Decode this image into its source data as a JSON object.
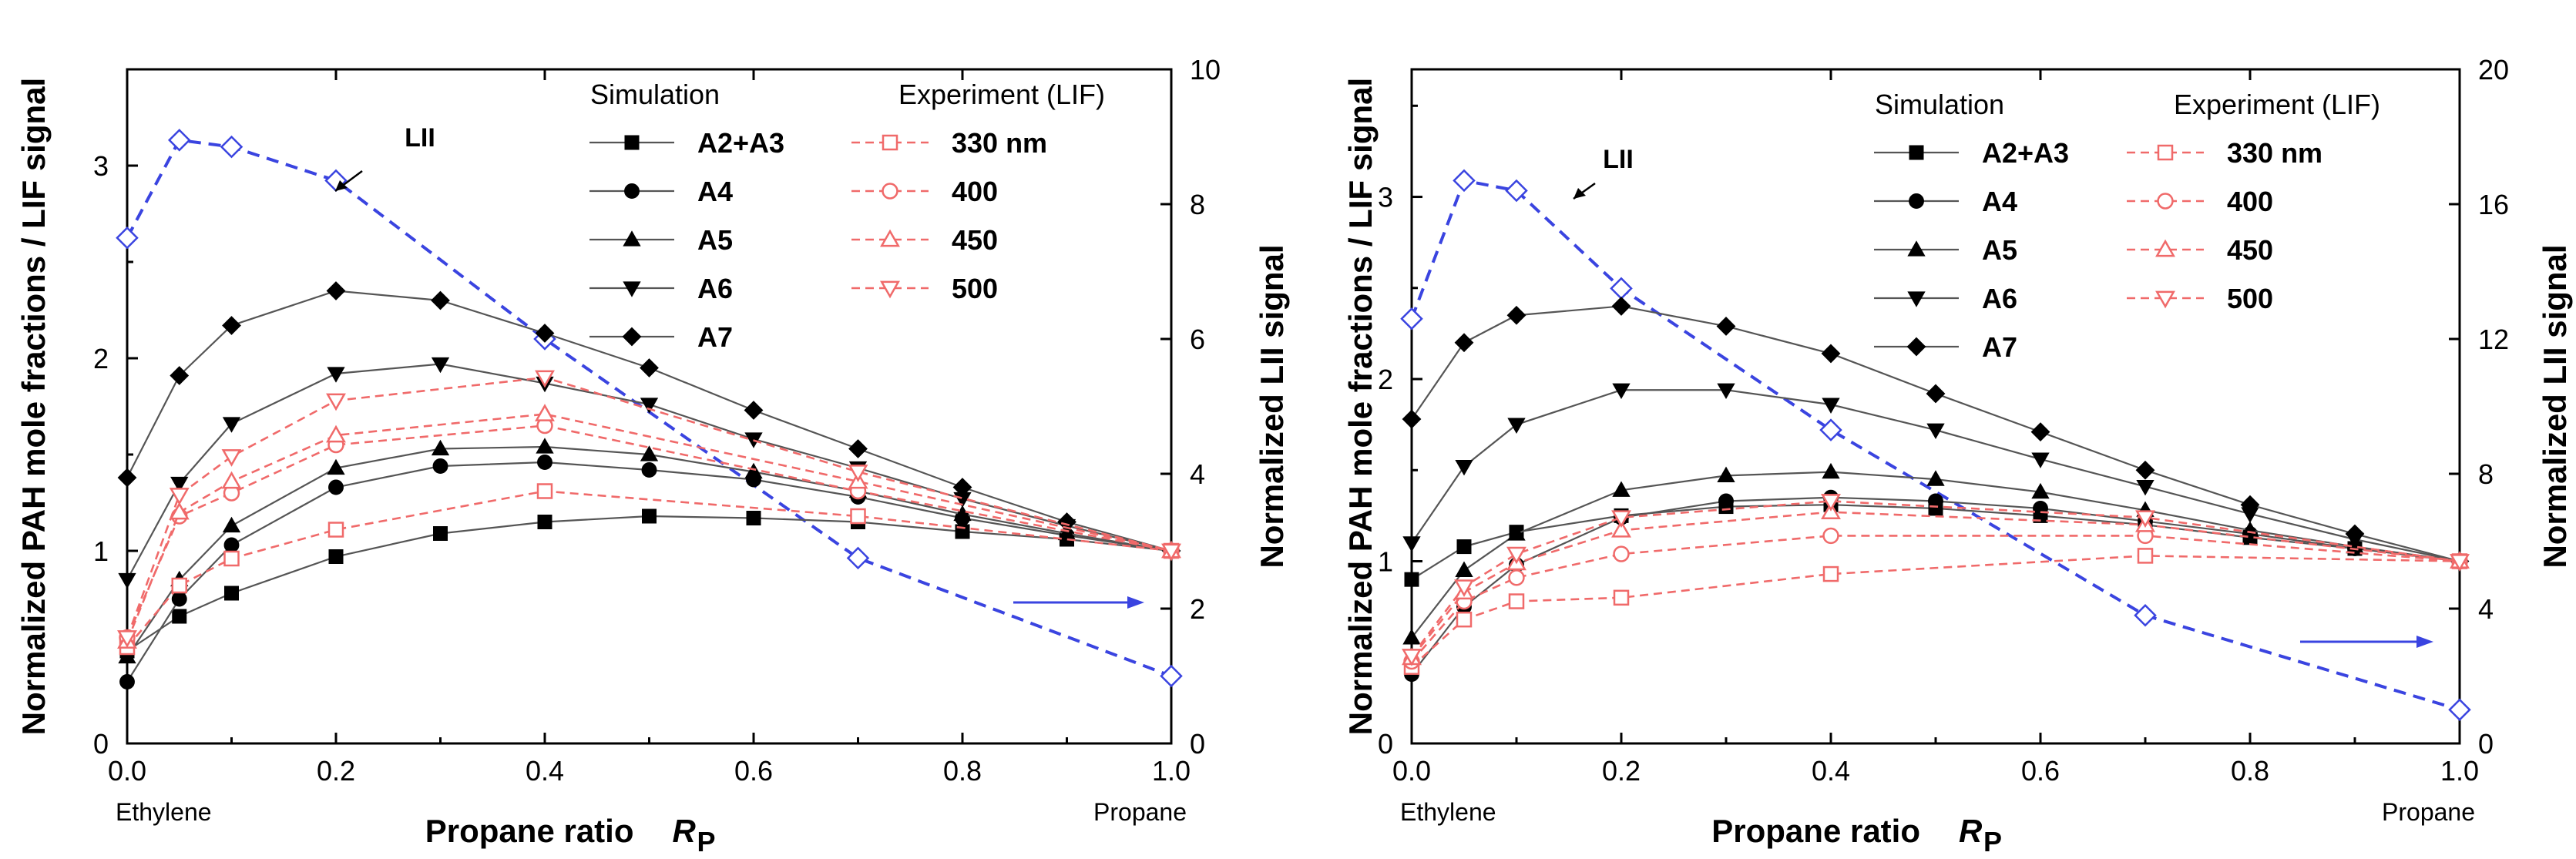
{
  "figure": {
    "background": "#ffffff",
    "colors": {
      "simulation_line": "#555555",
      "simulation_marker": "#000000",
      "experiment": "#f06a6a",
      "lii": "#3a44e0"
    }
  },
  "chart_data": [
    {
      "type": "line",
      "panel": "left",
      "xlabel": "Propane ratio",
      "xlabel_symbol": "R",
      "xlabel_subscript": "P",
      "ylabel_left": "Normalized PAH mole fractions / LIF signal",
      "ylabel_right": "Normalized LII signal",
      "x_start_label": "Ethylene",
      "x_end_label": "Propane",
      "xlim": [
        0,
        1
      ],
      "ylim_left": [
        0,
        3.5
      ],
      "ylim_right": [
        0,
        10
      ],
      "xticks": [
        0.0,
        0.2,
        0.4,
        0.6,
        0.8,
        1.0
      ],
      "xtick_labels": [
        "0.0",
        "0.2",
        "0.4",
        "0.6",
        "0.8",
        "1.0"
      ],
      "yticks_left": [
        0,
        1,
        2,
        3
      ],
      "ytick_labels_left": [
        "0",
        "1",
        "2",
        "3"
      ],
      "yticks_right": [
        0,
        2,
        4,
        6,
        8,
        10
      ],
      "ytick_labels_right": [
        "0",
        "2",
        "4",
        "6",
        "8",
        "10"
      ],
      "legend_sim_title": "Simulation",
      "legend_exp_title": "Experiment (LIF)",
      "annotation_lii": "LII",
      "simulation": [
        {
          "name": "A2+A3",
          "marker": "square",
          "x": [
            0,
            0.05,
            0.1,
            0.2,
            0.3,
            0.4,
            0.5,
            0.6,
            0.7,
            0.8,
            0.9,
            1.0
          ],
          "y": [
            0.48,
            0.66,
            0.78,
            0.97,
            1.09,
            1.15,
            1.18,
            1.17,
            1.15,
            1.1,
            1.06,
            1.0
          ]
        },
        {
          "name": "A4",
          "marker": "circle",
          "x": [
            0,
            0.05,
            0.1,
            0.2,
            0.3,
            0.4,
            0.5,
            0.6,
            0.7,
            0.8,
            0.9,
            1.0
          ],
          "y": [
            0.32,
            0.75,
            1.03,
            1.33,
            1.44,
            1.46,
            1.42,
            1.37,
            1.28,
            1.17,
            1.08,
            1.0
          ]
        },
        {
          "name": "A5",
          "marker": "triangle-up",
          "x": [
            0,
            0.05,
            0.1,
            0.2,
            0.3,
            0.4,
            0.5,
            0.6,
            0.7,
            0.8,
            0.9,
            1.0
          ],
          "y": [
            0.45,
            0.85,
            1.13,
            1.43,
            1.53,
            1.54,
            1.5,
            1.41,
            1.31,
            1.19,
            1.09,
            1.0
          ]
        },
        {
          "name": "A6",
          "marker": "triangle-down",
          "x": [
            0,
            0.05,
            0.1,
            0.2,
            0.3,
            0.4,
            0.5,
            0.6,
            0.7,
            0.8,
            0.9,
            1.0
          ],
          "y": [
            0.85,
            1.35,
            1.66,
            1.92,
            1.97,
            1.87,
            1.76,
            1.58,
            1.43,
            1.27,
            1.13,
            1.0
          ]
        },
        {
          "name": "A7",
          "marker": "diamond",
          "x": [
            0,
            0.05,
            0.1,
            0.2,
            0.3,
            0.4,
            0.5,
            0.6,
            0.7,
            0.8,
            0.9,
            1.0
          ],
          "y": [
            1.38,
            1.91,
            2.17,
            2.35,
            2.3,
            2.13,
            1.95,
            1.73,
            1.53,
            1.33,
            1.15,
            1.0
          ]
        }
      ],
      "experiment": [
        {
          "name": "330 nm",
          "marker": "square",
          "x": [
            0,
            0.05,
            0.1,
            0.2,
            0.4,
            0.7,
            1.0
          ],
          "y": [
            0.5,
            0.82,
            0.96,
            1.11,
            1.31,
            1.18,
            1.0
          ]
        },
        {
          "name": "400",
          "marker": "circle",
          "x": [
            0,
            0.05,
            0.1,
            0.2,
            0.4,
            0.7,
            1.0
          ],
          "y": [
            0.55,
            1.18,
            1.3,
            1.55,
            1.65,
            1.31,
            1.0
          ]
        },
        {
          "name": "450",
          "marker": "triangle-up",
          "x": [
            0,
            0.05,
            0.1,
            0.2,
            0.4,
            0.7,
            1.0
          ],
          "y": [
            0.53,
            1.2,
            1.36,
            1.6,
            1.71,
            1.36,
            1.0
          ]
        },
        {
          "name": "500",
          "marker": "triangle-down",
          "x": [
            0,
            0.05,
            0.1,
            0.2,
            0.4,
            0.7,
            1.0
          ],
          "y": [
            0.55,
            1.29,
            1.49,
            1.78,
            1.9,
            1.41,
            1.0
          ]
        }
      ],
      "lii": {
        "name": "LII",
        "marker": "diamond",
        "axis": "right",
        "x": [
          0,
          0.05,
          0.1,
          0.2,
          0.4,
          0.7,
          1.0
        ],
        "y": [
          7.5,
          8.95,
          8.85,
          8.35,
          6.0,
          2.75,
          1.0
        ]
      }
    },
    {
      "type": "line",
      "panel": "right",
      "xlabel": "Propane ratio",
      "xlabel_symbol": "R",
      "xlabel_subscript": "P",
      "ylabel_left": "Normalized PAH mole fractions / LIF signal",
      "ylabel_right": "Normalized LII signal",
      "x_start_label": "Ethylene",
      "x_end_label": "Propane",
      "xlim": [
        0,
        1
      ],
      "ylim_left": [
        0,
        3.7
      ],
      "ylim_right": [
        0,
        20
      ],
      "xticks": [
        0.0,
        0.2,
        0.4,
        0.6,
        0.8,
        1.0
      ],
      "xtick_labels": [
        "0.0",
        "0.2",
        "0.4",
        "0.6",
        "0.8",
        "1.0"
      ],
      "yticks_left": [
        0,
        1,
        2,
        3
      ],
      "ytick_labels_left": [
        "0",
        "1",
        "2",
        "3"
      ],
      "yticks_right": [
        0,
        4,
        8,
        12,
        16,
        20
      ],
      "ytick_labels_right": [
        "0",
        "4",
        "8",
        "12",
        "16",
        "20"
      ],
      "legend_sim_title": "Simulation",
      "legend_exp_title": "Experiment (LIF)",
      "annotation_lii": "LII",
      "simulation": [
        {
          "name": "A2+A3",
          "marker": "square",
          "x": [
            0,
            0.05,
            0.1,
            0.2,
            0.3,
            0.4,
            0.5,
            0.6,
            0.7,
            0.8,
            0.9,
            1.0
          ],
          "y": [
            0.9,
            1.08,
            1.16,
            1.25,
            1.3,
            1.31,
            1.29,
            1.25,
            1.2,
            1.13,
            1.07,
            1.0
          ]
        },
        {
          "name": "A4",
          "marker": "circle",
          "x": [
            0,
            0.05,
            0.1,
            0.2,
            0.3,
            0.4,
            0.5,
            0.6,
            0.7,
            0.8,
            0.9,
            1.0
          ],
          "y": [
            0.38,
            0.75,
            0.98,
            1.24,
            1.33,
            1.35,
            1.33,
            1.29,
            1.22,
            1.15,
            1.07,
            1.0
          ]
        },
        {
          "name": "A5",
          "marker": "triangle-up",
          "x": [
            0,
            0.05,
            0.1,
            0.2,
            0.3,
            0.4,
            0.5,
            0.6,
            0.7,
            0.8,
            0.9,
            1.0
          ],
          "y": [
            0.58,
            0.95,
            1.15,
            1.39,
            1.47,
            1.49,
            1.45,
            1.38,
            1.28,
            1.17,
            1.08,
            1.0
          ]
        },
        {
          "name": "A6",
          "marker": "triangle-down",
          "x": [
            0,
            0.05,
            0.1,
            0.2,
            0.3,
            0.4,
            0.5,
            0.6,
            0.7,
            0.8,
            0.9,
            1.0
          ],
          "y": [
            1.1,
            1.52,
            1.75,
            1.94,
            1.94,
            1.86,
            1.72,
            1.56,
            1.41,
            1.26,
            1.12,
            1.0
          ]
        },
        {
          "name": "A7",
          "marker": "diamond",
          "x": [
            0,
            0.05,
            0.1,
            0.2,
            0.3,
            0.4,
            0.5,
            0.6,
            0.7,
            0.8,
            0.9,
            1.0
          ],
          "y": [
            1.78,
            2.2,
            2.35,
            2.4,
            2.29,
            2.14,
            1.92,
            1.71,
            1.5,
            1.31,
            1.15,
            1.0
          ]
        }
      ],
      "experiment": [
        {
          "name": "330 nm",
          "marker": "square",
          "x": [
            0,
            0.05,
            0.1,
            0.2,
            0.4,
            0.7,
            1.0
          ],
          "y": [
            0.42,
            0.68,
            0.78,
            0.8,
            0.93,
            1.03,
            1.0
          ]
        },
        {
          "name": "400",
          "marker": "circle",
          "x": [
            0,
            0.05,
            0.1,
            0.2,
            0.4,
            0.7,
            1.0
          ],
          "y": [
            0.45,
            0.78,
            0.91,
            1.04,
            1.14,
            1.14,
            1.0
          ]
        },
        {
          "name": "450",
          "marker": "triangle-up",
          "x": [
            0,
            0.05,
            0.1,
            0.2,
            0.4,
            0.7,
            1.0
          ],
          "y": [
            0.47,
            0.83,
            0.99,
            1.17,
            1.27,
            1.2,
            1.0
          ]
        },
        {
          "name": "500",
          "marker": "triangle-down",
          "x": [
            0,
            0.05,
            0.1,
            0.2,
            0.4,
            0.7,
            1.0
          ],
          "y": [
            0.48,
            0.86,
            1.04,
            1.24,
            1.33,
            1.24,
            1.0
          ]
        }
      ],
      "lii": {
        "name": "LII",
        "marker": "diamond",
        "axis": "right",
        "x": [
          0,
          0.05,
          0.1,
          0.2,
          0.4,
          0.7,
          1.0
        ],
        "y": [
          12.6,
          16.7,
          16.4,
          13.5,
          9.3,
          3.8,
          1.0
        ]
      }
    }
  ]
}
